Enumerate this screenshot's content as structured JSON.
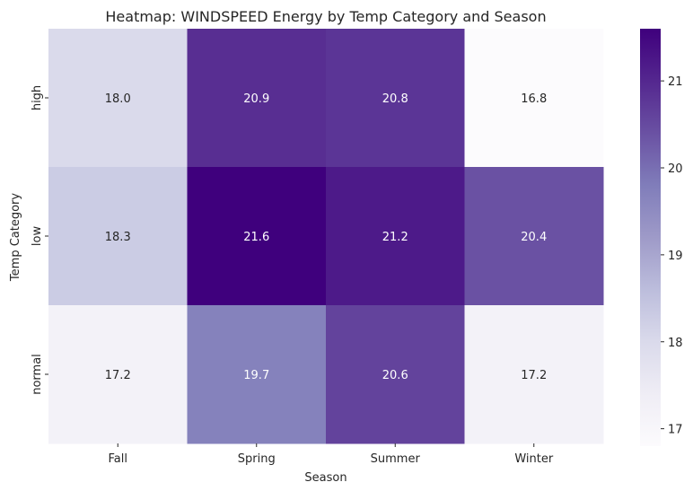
{
  "chart_data": {
    "type": "heatmap",
    "title": "Heatmap: WINDSPEED Energy by Temp Category and Season",
    "xlabel": "Season",
    "ylabel": "Temp Category",
    "x_categories": [
      "Fall",
      "Spring",
      "Summer",
      "Winter"
    ],
    "y_categories": [
      "high",
      "low",
      "normal"
    ],
    "values": [
      [
        18.0,
        20.9,
        20.8,
        16.8
      ],
      [
        18.3,
        21.6,
        21.2,
        20.4
      ],
      [
        17.2,
        19.7,
        20.6,
        17.2
      ]
    ],
    "colormap": "Purples",
    "colorbar": {
      "range": [
        16.8,
        21.6
      ],
      "ticks": [
        "17",
        "18",
        "19",
        "20",
        "21"
      ]
    },
    "annotation_format": "0.1f"
  }
}
